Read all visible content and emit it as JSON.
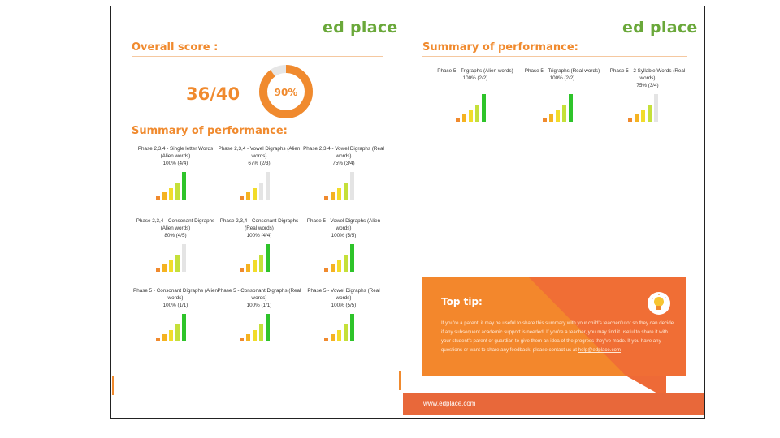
{
  "brand": {
    "logo": "ed place",
    "footer_url": "www.edplace.com"
  },
  "colors": {
    "accent": "#f08a2e",
    "brand_green": "#6aa83a",
    "tip_bg": "#f3872c",
    "footer_bg": "#e8683a"
  },
  "page1": {
    "overall_title": "Overall score :",
    "score": "36/40",
    "percent_label": "90%",
    "percent_value": 90,
    "summary_title": "Summary of performance:",
    "cards": [
      {
        "title": "Phase 2,3,4 - Single letter Words (Alien words)",
        "pct": "100% (4/4)",
        "level": 5
      },
      {
        "title": "Phase 2,3,4 - Vowel Digraphs (Alien words)",
        "pct": "67% (2/3)",
        "level": 3
      },
      {
        "title": "Phase 2,3,4 - Vowel Digraphs (Real words)",
        "pct": "75% (3/4)",
        "level": 4
      },
      {
        "title": "Phase 2,3,4 - Consonant Digraphs (Alien words)",
        "pct": "80% (4/5)",
        "level": 4
      },
      {
        "title": "Phase 2,3,4 - Consonant Digraphs (Real words)",
        "pct": "100% (4/4)",
        "level": 5
      },
      {
        "title": "Phase 5 - Vowel Digraphs (Alien words)",
        "pct": "100% (5/5)",
        "level": 5
      },
      {
        "title": "Phase 5 - Consonant Digraphs (Alien words)",
        "pct": "100% (1/1)",
        "level": 5
      },
      {
        "title": "Phase 5 - Consonant Digraphs (Real words)",
        "pct": "100% (1/1)",
        "level": 5
      },
      {
        "title": "Phase 5 - Vowel Digraphs (Real words)",
        "pct": "100% (5/5)",
        "level": 5
      }
    ]
  },
  "page2": {
    "summary_title": "Summary of performance:",
    "cards": [
      {
        "title": "Phase 5 - Trigraphs (Alien words)",
        "pct": "100% (2/2)",
        "level": 5
      },
      {
        "title": "Phase 5 - Trigraphs (Real words)",
        "pct": "100% (2/2)",
        "level": 5
      },
      {
        "title": "Phase 5 - 2 Syllable Words (Real words)",
        "pct": "75% (3/4)",
        "level": 4
      }
    ],
    "tip_title": "Top tip:",
    "tip_body": "If you're a parent, it may be useful to share this summary with your child's teacher/tutor so they can decide if any subsequent academic support is needed. If you're a teacher, you may find it useful to share it with your student's parent or guardian to give them an idea of the progress they've made. If you have any questions or want to share any feedback, please contact us at",
    "tip_email": "help@edplace.com"
  }
}
